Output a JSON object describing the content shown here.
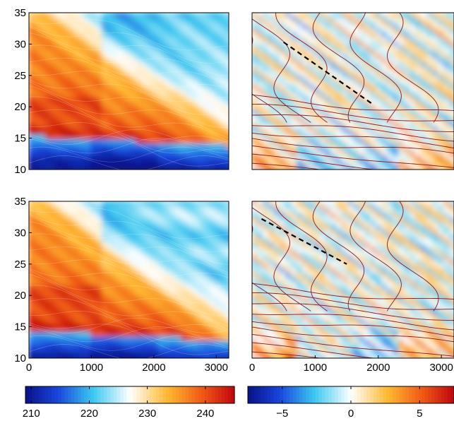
{
  "chart_data": [
    {
      "type": "heatmap",
      "panel": "top-left",
      "title": "",
      "xlabel": "",
      "ylabel": "",
      "xlim": [
        0,
        3200
      ],
      "ylim": [
        10,
        35
      ],
      "x_ticks": [],
      "y_ticks": [
        10,
        15,
        20,
        25,
        30,
        35
      ],
      "colorbar": "left",
      "overlay_contours": false
    },
    {
      "type": "heatmap",
      "panel": "top-right",
      "title": "",
      "xlabel": "",
      "ylabel": "",
      "xlim": [
        0,
        3200
      ],
      "ylim": [
        10,
        35
      ],
      "x_ticks": [],
      "y_ticks": [],
      "colorbar": "right",
      "overlay_contours": true,
      "dashed_line": [
        [
          500,
          30.3
        ],
        [
          1900,
          20.5
        ]
      ]
    },
    {
      "type": "heatmap",
      "panel": "bottom-left",
      "title": "",
      "xlabel": "",
      "ylabel": "",
      "xlim": [
        0,
        3200
      ],
      "ylim": [
        10,
        35
      ],
      "x_ticks": [
        0,
        1000,
        2000,
        3000
      ],
      "y_ticks": [
        10,
        15,
        20,
        25,
        30,
        35
      ],
      "colorbar": "left",
      "overlay_contours": false
    },
    {
      "type": "heatmap",
      "panel": "bottom-right",
      "title": "",
      "xlabel": "",
      "ylabel": "",
      "xlim": [
        0,
        3200
      ],
      "ylim": [
        10,
        35
      ],
      "x_ticks": [
        0,
        1000,
        2000,
        3000
      ],
      "y_ticks": [],
      "colorbar": "right",
      "overlay_contours": true,
      "dashed_line": [
        [
          150,
          32.2
        ],
        [
          1500,
          25.0
        ]
      ]
    }
  ],
  "colorbars": {
    "left": {
      "range": [
        209,
        245
      ],
      "ticks": [
        210,
        220,
        230,
        240
      ],
      "tick_labels": [
        "210",
        "220",
        "230",
        "240"
      ]
    },
    "right": {
      "range": [
        -7.5,
        7.5
      ],
      "ticks": [
        -5,
        0,
        5
      ],
      "tick_labels": [
        "−5",
        "0",
        "5"
      ]
    }
  },
  "colors": {
    "deep_blue": "#0a1f9e",
    "blue": "#1f6fe0",
    "cyan": "#43d6f0",
    "white": "#ffffff",
    "orange": "#ffaa2a",
    "red": "#e52222",
    "dark_red": "#8a0a0a",
    "contour": "#8b1a1a"
  }
}
